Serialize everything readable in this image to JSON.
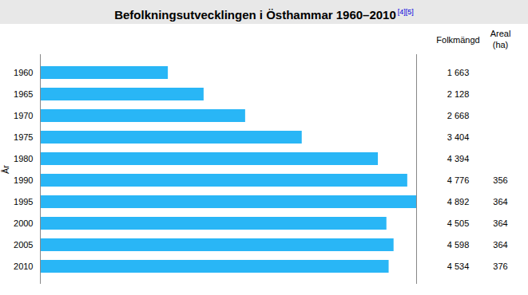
{
  "chart_data": {
    "type": "bar",
    "orientation": "horizontal",
    "title": "Befolkningsutvecklingen i Östhammar 1960–2010",
    "annotations": [
      "[4][5]",
      "Folkmängd",
      "Areal",
      "(ha)"
    ],
    "ylabel": "År",
    "categories": [
      "1960",
      "1965",
      "1970",
      "1975",
      "1980",
      "1990",
      "1995",
      "2000",
      "2005",
      "2010"
    ],
    "values": [
      1663,
      2128,
      2668,
      3404,
      4394,
      4776,
      4892,
      4505,
      4598,
      4534
    ],
    "value_labels": [
      "1 663",
      "2 128",
      "2 668",
      "3 404",
      "4 394",
      "4 776",
      "4 892",
      "4 505",
      "4 598",
      "4 534"
    ],
    "area": [
      null,
      null,
      null,
      null,
      null,
      356,
      364,
      364,
      364,
      376
    ],
    "data_labels": true,
    "color": "#29B6F6",
    "xlim": [
      0,
      4892
    ],
    "xticks": [],
    "tick_labels": "y",
    "grid": false
  }
}
